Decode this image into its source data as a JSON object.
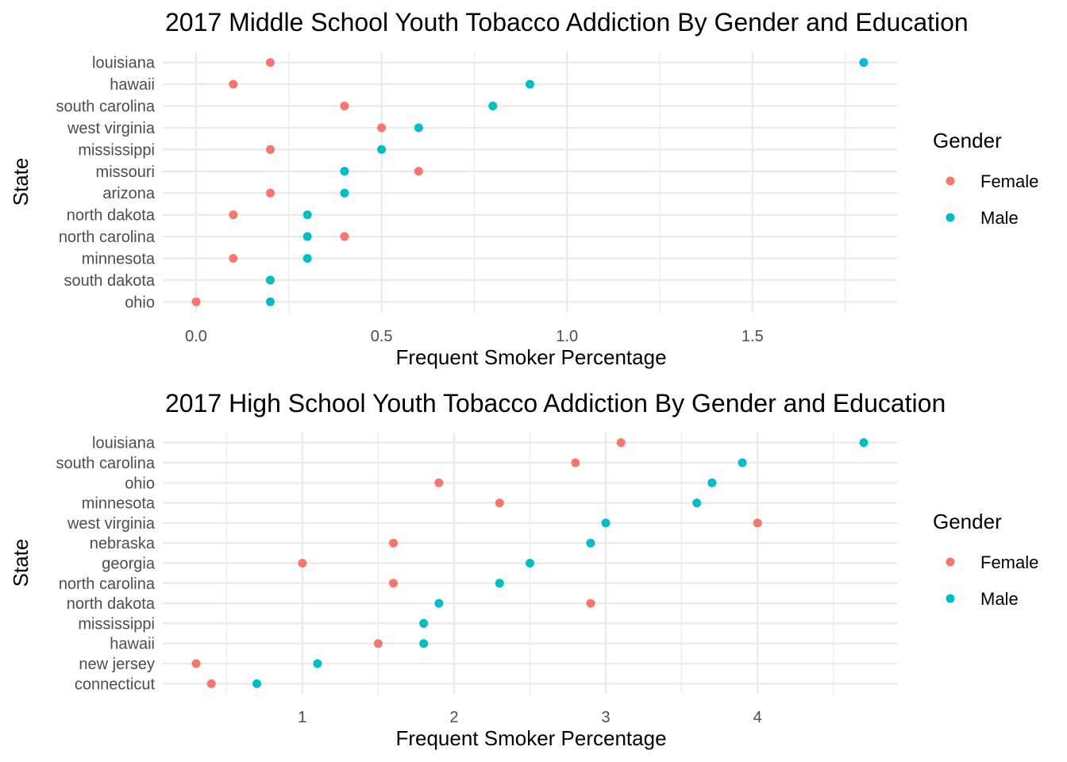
{
  "chart_data": [
    {
      "type": "scatter",
      "title": "2017 Middle School Youth Tobacco Addiction By Gender and Education",
      "xlabel": "Frequent Smoker Percentage",
      "ylabel": "State",
      "xlim": [
        -0.09,
        1.89
      ],
      "x_ticks": [
        0.0,
        0.5,
        1.0,
        1.5
      ],
      "x_tick_labels": [
        "0.0",
        "0.5",
        "1.0",
        "1.5"
      ],
      "x_minor_ticks": [
        0.25,
        0.75,
        1.25,
        1.75
      ],
      "categories": [
        "louisiana",
        "hawaii",
        "south carolina",
        "west virginia",
        "mississippi",
        "missouri",
        "arizona",
        "north dakota",
        "north carolina",
        "minnesota",
        "south dakota",
        "ohio"
      ],
      "grid": true,
      "legend": {
        "title": "Gender",
        "position": "right"
      },
      "series": [
        {
          "name": "Female",
          "color": "#F8766D",
          "values": [
            0.2,
            0.1,
            0.4,
            0.5,
            0.2,
            0.6,
            0.2,
            0.1,
            0.4,
            0.1,
            0.2,
            0.0
          ]
        },
        {
          "name": "Male",
          "color": "#00BFC4",
          "values": [
            1.8,
            0.9,
            0.8,
            0.6,
            0.5,
            0.4,
            0.4,
            0.3,
            0.3,
            0.3,
            0.2,
            0.2
          ]
        }
      ]
    },
    {
      "type": "scatter",
      "title": "2017 High School Youth Tobacco Addiction By Gender and Education",
      "xlabel": "Frequent Smoker Percentage",
      "ylabel": "State",
      "xlim": [
        0.08,
        4.92
      ],
      "x_ticks": [
        1,
        2,
        3,
        4
      ],
      "x_tick_labels": [
        "1",
        "2",
        "3",
        "4"
      ],
      "x_minor_ticks": [
        0.5,
        1.5,
        2.5,
        3.5,
        4.5
      ],
      "categories": [
        "louisiana",
        "south carolina",
        "ohio",
        "minnesota",
        "west virginia",
        "nebraska",
        "georgia",
        "north carolina",
        "north dakota",
        "mississippi",
        "hawaii",
        "new jersey",
        "connecticut"
      ],
      "grid": true,
      "legend": {
        "title": "Gender",
        "position": "right"
      },
      "series": [
        {
          "name": "Female",
          "color": "#F8766D",
          "values": [
            3.1,
            2.8,
            1.9,
            2.3,
            4.0,
            1.6,
            1.0,
            1.6,
            2.9,
            1.8,
            1.5,
            0.3,
            0.4
          ]
        },
        {
          "name": "Male",
          "color": "#00BFC4",
          "values": [
            4.7,
            3.9,
            3.7,
            3.6,
            3.0,
            2.9,
            2.5,
            2.3,
            1.9,
            1.8,
            1.8,
            1.1,
            0.7
          ]
        }
      ]
    }
  ]
}
